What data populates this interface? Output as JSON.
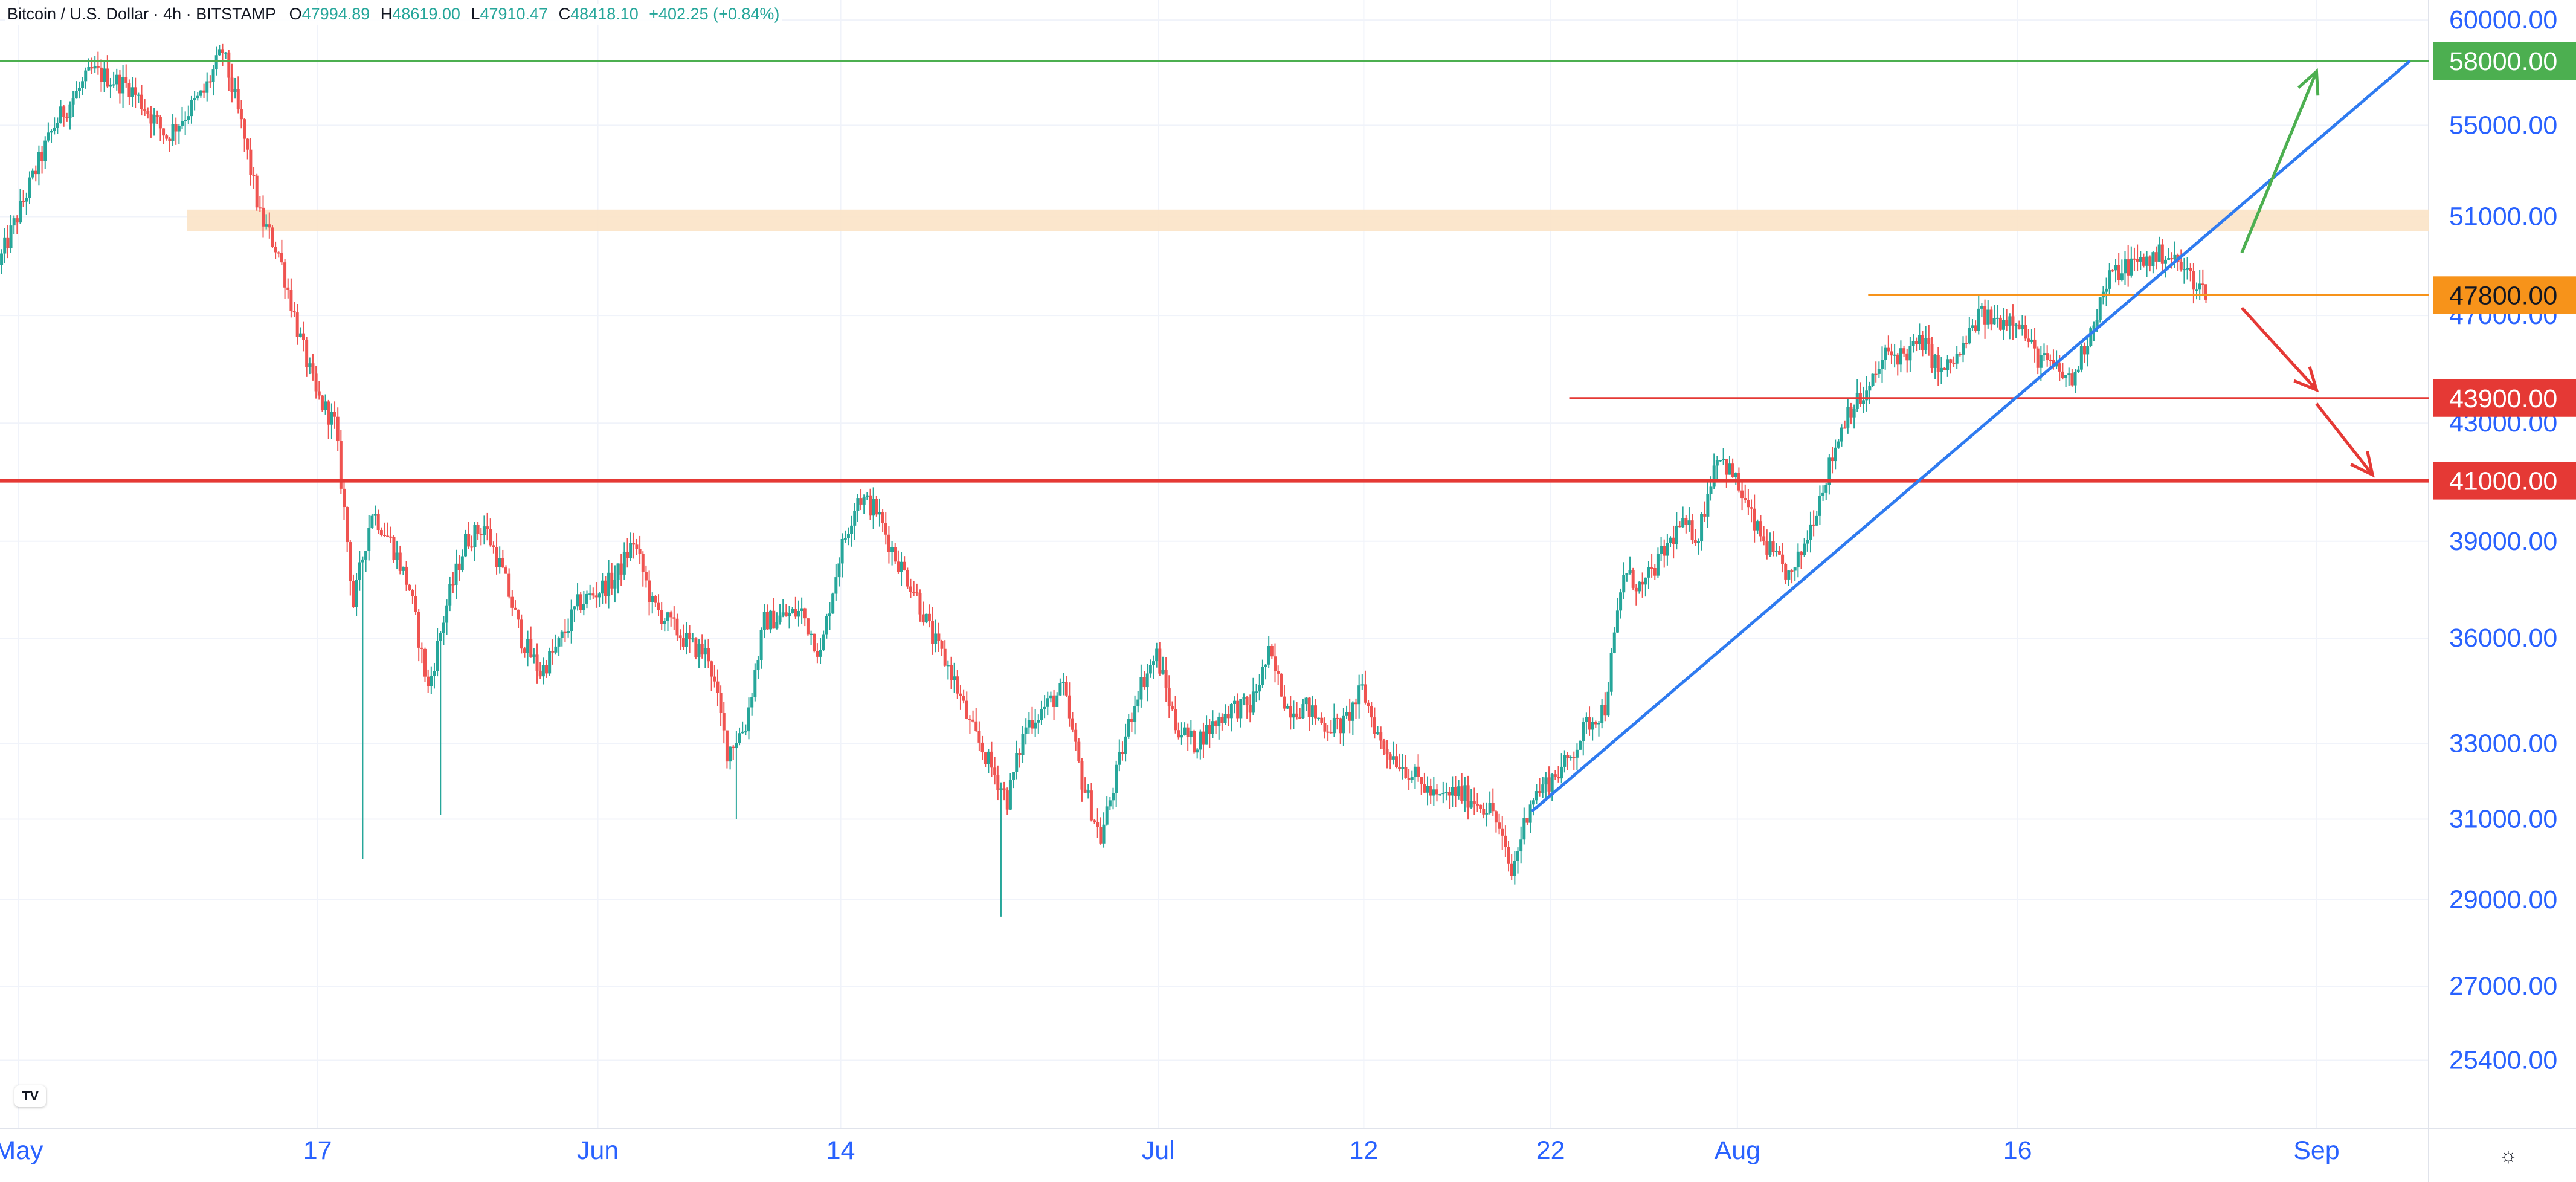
{
  "header": {
    "symbol": "Bitcoin / U.S. Dollar · 4h · BITSTAMP",
    "open_key": "O",
    "open": "47994.89",
    "high_key": "H",
    "high": "48619.00",
    "low_key": "L",
    "low": "47910.47",
    "close_key": "C",
    "close": "48418.10",
    "change": "+402.25 (+0.84%)"
  },
  "logo_text": "TV",
  "settings_icon": "gear-icon",
  "colors": {
    "up": "#26a69a",
    "down": "#ef5350",
    "grid": "#f0f3fa",
    "axis_text": "#2962ff",
    "green_level": "#4caf50",
    "orange_level": "#f7931a",
    "red_level": "#e53935",
    "trendline": "#2f7bf0",
    "zone": "#fbe3c6"
  },
  "chart_data": {
    "type": "candlestick",
    "title": "Bitcoin / U.S. Dollar · 4h · BITSTAMP",
    "xlabel": "",
    "ylabel": "",
    "x_axis_type": "date",
    "x_range": [
      "2021-04-30",
      "2021-09-07"
    ],
    "ylim": [
      24000,
      61000
    ],
    "y_ticks": [
      25400,
      27000,
      29000,
      31000,
      33000,
      36000,
      39000,
      43000,
      47000,
      51000,
      55000,
      60000
    ],
    "y_tick_labels": [
      "25400.00",
      "27000.00",
      "29000.00",
      "31000.00",
      "33000.00",
      "36000.00",
      "39000.00",
      "43000.00",
      "47000.00",
      "51000.00",
      "55000.00",
      "60000.00"
    ],
    "x_ticks": [
      {
        "date": "2021-05-01",
        "label": "May"
      },
      {
        "date": "2021-05-17",
        "label": "17"
      },
      {
        "date": "2021-06-01",
        "label": "Jun"
      },
      {
        "date": "2021-06-14",
        "label": "14"
      },
      {
        "date": "2021-07-01",
        "label": "Jul"
      },
      {
        "date": "2021-07-12",
        "label": "12"
      },
      {
        "date": "2021-07-22",
        "label": "22"
      },
      {
        "date": "2021-08-01",
        "label": "Aug"
      },
      {
        "date": "2021-08-16",
        "label": "16"
      },
      {
        "date": "2021-09-01",
        "label": "Sep"
      }
    ],
    "price_path": [
      [
        "2021-04-30",
        49000
      ],
      [
        "2021-05-03",
        55000
      ],
      [
        "2021-05-05",
        57500
      ],
      [
        "2021-05-07",
        56800
      ],
      [
        "2021-05-09",
        54500
      ],
      [
        "2021-05-11",
        56500
      ],
      [
        "2021-05-12",
        58500
      ],
      [
        "2021-05-13",
        55000
      ],
      [
        "2021-05-14",
        51000
      ],
      [
        "2021-05-15",
        49500
      ],
      [
        "2021-05-16",
        46500
      ],
      [
        "2021-05-17",
        44000
      ],
      [
        "2021-05-18",
        43000
      ],
      [
        "2021-05-19",
        37000
      ],
      [
        "2021-05-20",
        40000
      ],
      [
        "2021-05-21",
        39000
      ],
      [
        "2021-05-22",
        37500
      ],
      [
        "2021-05-23",
        34500
      ],
      [
        "2021-05-24",
        37000
      ],
      [
        "2021-05-25",
        39000
      ],
      [
        "2021-05-26",
        39500
      ],
      [
        "2021-05-27",
        38000
      ],
      [
        "2021-05-28",
        36000
      ],
      [
        "2021-05-29",
        35000
      ],
      [
        "2021-05-30",
        35800
      ],
      [
        "2021-05-31",
        37000
      ],
      [
        "2021-06-02",
        37800
      ],
      [
        "2021-06-03",
        39000
      ],
      [
        "2021-06-04",
        37000
      ],
      [
        "2021-06-06",
        35800
      ],
      [
        "2021-06-07",
        35500
      ],
      [
        "2021-06-08",
        32800
      ],
      [
        "2021-06-09",
        33500
      ],
      [
        "2021-06-10",
        36500
      ],
      [
        "2021-06-12",
        36800
      ],
      [
        "2021-06-13",
        35500
      ],
      [
        "2021-06-14",
        38500
      ],
      [
        "2021-06-15",
        40500
      ],
      [
        "2021-06-16",
        40000
      ],
      [
        "2021-06-17",
        38500
      ],
      [
        "2021-06-18",
        37500
      ],
      [
        "2021-06-19",
        36000
      ],
      [
        "2021-06-20",
        35000
      ],
      [
        "2021-06-21",
        33500
      ],
      [
        "2021-06-22",
        32500
      ],
      [
        "2021-06-23",
        31500
      ],
      [
        "2021-06-24",
        33500
      ],
      [
        "2021-06-26",
        34500
      ],
      [
        "2021-06-27",
        32000
      ],
      [
        "2021-06-28",
        30500
      ],
      [
        "2021-06-29",
        32500
      ],
      [
        "2021-06-30",
        34500
      ],
      [
        "2021-07-01",
        35500
      ],
      [
        "2021-07-02",
        33500
      ],
      [
        "2021-07-03",
        33000
      ],
      [
        "2021-07-04",
        33500
      ],
      [
        "2021-07-05",
        34000
      ],
      [
        "2021-07-06",
        34000
      ],
      [
        "2021-07-07",
        35500
      ],
      [
        "2021-07-08",
        34000
      ],
      [
        "2021-07-09",
        34000
      ],
      [
        "2021-07-10",
        33500
      ],
      [
        "2021-07-11",
        33500
      ],
      [
        "2021-07-12",
        34500
      ],
      [
        "2021-07-13",
        33000
      ],
      [
        "2021-07-14",
        32500
      ],
      [
        "2021-07-15",
        32000
      ],
      [
        "2021-07-16",
        31500
      ],
      [
        "2021-07-17",
        31700
      ],
      [
        "2021-07-18",
        31500
      ],
      [
        "2021-07-19",
        31200
      ],
      [
        "2021-07-20",
        29600
      ],
      [
        "2021-07-21",
        31500
      ],
      [
        "2021-07-22",
        32000
      ],
      [
        "2021-07-23",
        32500
      ],
      [
        "2021-07-24",
        33500
      ],
      [
        "2021-07-25",
        34000
      ],
      [
        "2021-07-26",
        38000
      ],
      [
        "2021-07-27",
        37500
      ],
      [
        "2021-07-28",
        38500
      ],
      [
        "2021-07-29",
        39500
      ],
      [
        "2021-07-30",
        39200
      ],
      [
        "2021-07-31",
        42000
      ],
      [
        "2021-08-01",
        41000
      ],
      [
        "2021-08-02",
        39500
      ],
      [
        "2021-08-03",
        38500
      ],
      [
        "2021-08-04",
        37800
      ],
      [
        "2021-08-05",
        39500
      ],
      [
        "2021-08-06",
        41500
      ],
      [
        "2021-08-07",
        43500
      ],
      [
        "2021-08-08",
        44000
      ],
      [
        "2021-08-09",
        45500
      ],
      [
        "2021-08-10",
        45500
      ],
      [
        "2021-08-11",
        46000
      ],
      [
        "2021-08-12",
        44800
      ],
      [
        "2021-08-13",
        45500
      ],
      [
        "2021-08-14",
        47000
      ],
      [
        "2021-08-15",
        46800
      ],
      [
        "2021-08-16",
        47000
      ],
      [
        "2021-08-17",
        45500
      ],
      [
        "2021-08-18",
        45000
      ],
      [
        "2021-08-19",
        44500
      ],
      [
        "2021-08-20",
        46500
      ],
      [
        "2021-08-21",
        48500
      ],
      [
        "2021-08-22",
        49000
      ],
      [
        "2021-08-23",
        49200
      ],
      [
        "2021-08-24",
        49500
      ],
      [
        "2021-08-25",
        48800
      ],
      [
        "2021-08-26",
        48000
      ]
    ],
    "annotations": {
      "horizontal_levels": [
        {
          "name": "level-58000",
          "price": 58000,
          "label": "58000.00",
          "style": "green",
          "x_start": "2021-04-30"
        },
        {
          "name": "level-47800",
          "price": 47800,
          "label": "47800.00",
          "style": "orange",
          "x_start": "2021-08-08"
        },
        {
          "name": "level-43900",
          "price": 43900,
          "label": "43900.00",
          "style": "red",
          "x_start": "2021-07-23"
        },
        {
          "name": "level-41000",
          "price": 41000,
          "label": "41000.00",
          "style": "red-thick",
          "x_start": "2021-04-30"
        }
      ],
      "resistance_zone": {
        "from_date": "2021-05-10",
        "price_low": 50400,
        "price_high": 51300
      },
      "trendline": {
        "start": [
          "2021-07-21",
          31200
        ],
        "end": [
          "2021-09-06",
          58000
        ]
      },
      "arrows": [
        {
          "name": "bullish-arrow",
          "color": "green",
          "from": [
            "2021-08-28",
            49500
          ],
          "to": [
            "2021-09-01",
            57500
          ]
        },
        {
          "name": "bearish-arrow-1",
          "color": "red",
          "from": [
            "2021-08-28",
            47300
          ],
          "to": [
            "2021-09-01",
            44200
          ]
        },
        {
          "name": "bearish-arrow-2",
          "color": "red",
          "from": [
            "2021-09-01",
            43700
          ],
          "to": [
            "2021-09-04",
            41200
          ]
        }
      ]
    },
    "grid": true,
    "legend": "none",
    "y_axis_position": "right"
  }
}
